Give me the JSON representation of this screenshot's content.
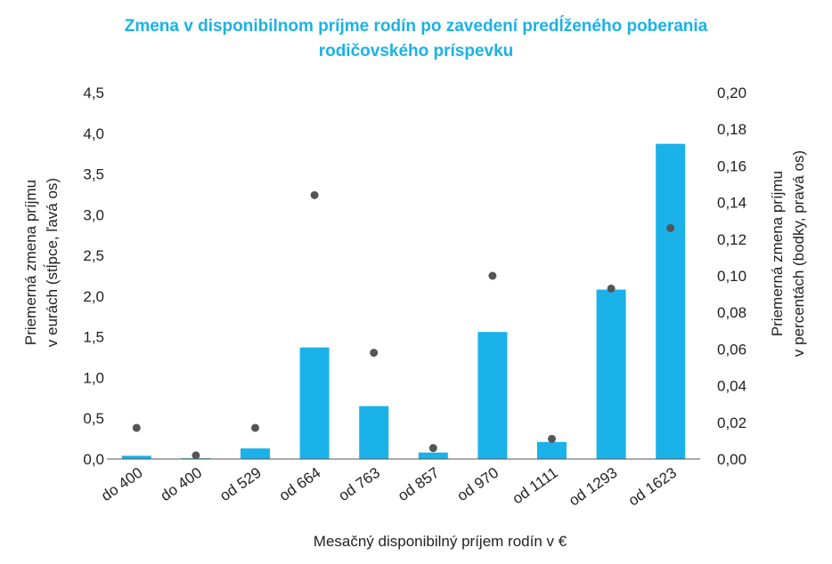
{
  "chart_data": {
    "type": "bar",
    "title_lines": [
      "Zmena v disponibilnom príjme rodín po zavedení predĺženého poberania",
      "rodičovského príspevku"
    ],
    "xlabel": "Mesačný disponibilný príjem rodín v €",
    "ylabel_left_lines": [
      "Priemerná zmena príjmu",
      "v eurách (stĺpce, ľavá os)"
    ],
    "ylabel_right_lines": [
      "Priemerná zmena príjmu",
      "v percentách (bodky, pravá os)"
    ],
    "categories": [
      "do 400",
      "do 400",
      "od 529",
      "od 664",
      "od 763",
      "od 857",
      "od 970",
      "od 1111",
      "od 1293",
      "od 1623"
    ],
    "ylim_left": [
      0,
      4.5
    ],
    "yticks_left": [
      "0,0",
      "0,5",
      "1,0",
      "1,5",
      "2,0",
      "2,5",
      "3,0",
      "3,5",
      "4,0",
      "4,5"
    ],
    "ylim_right": [
      0,
      0.2
    ],
    "yticks_right": [
      "0,00",
      "0,02",
      "0,04",
      "0,06",
      "0,08",
      "0,10",
      "0,12",
      "0,14",
      "0,16",
      "0,18",
      "0,20"
    ],
    "series": [
      {
        "type": "bar",
        "axis": "left",
        "color": "#1ab2e8",
        "values": [
          0.04,
          0.01,
          0.13,
          1.37,
          0.65,
          0.08,
          1.56,
          0.21,
          2.08,
          3.87
        ]
      },
      {
        "type": "scatter",
        "axis": "right",
        "color": "#555555",
        "values": [
          0.017,
          0.002,
          0.017,
          0.144,
          0.058,
          0.006,
          0.1,
          0.011,
          0.093,
          0.126
        ]
      }
    ],
    "grid": false,
    "legend": "none"
  }
}
